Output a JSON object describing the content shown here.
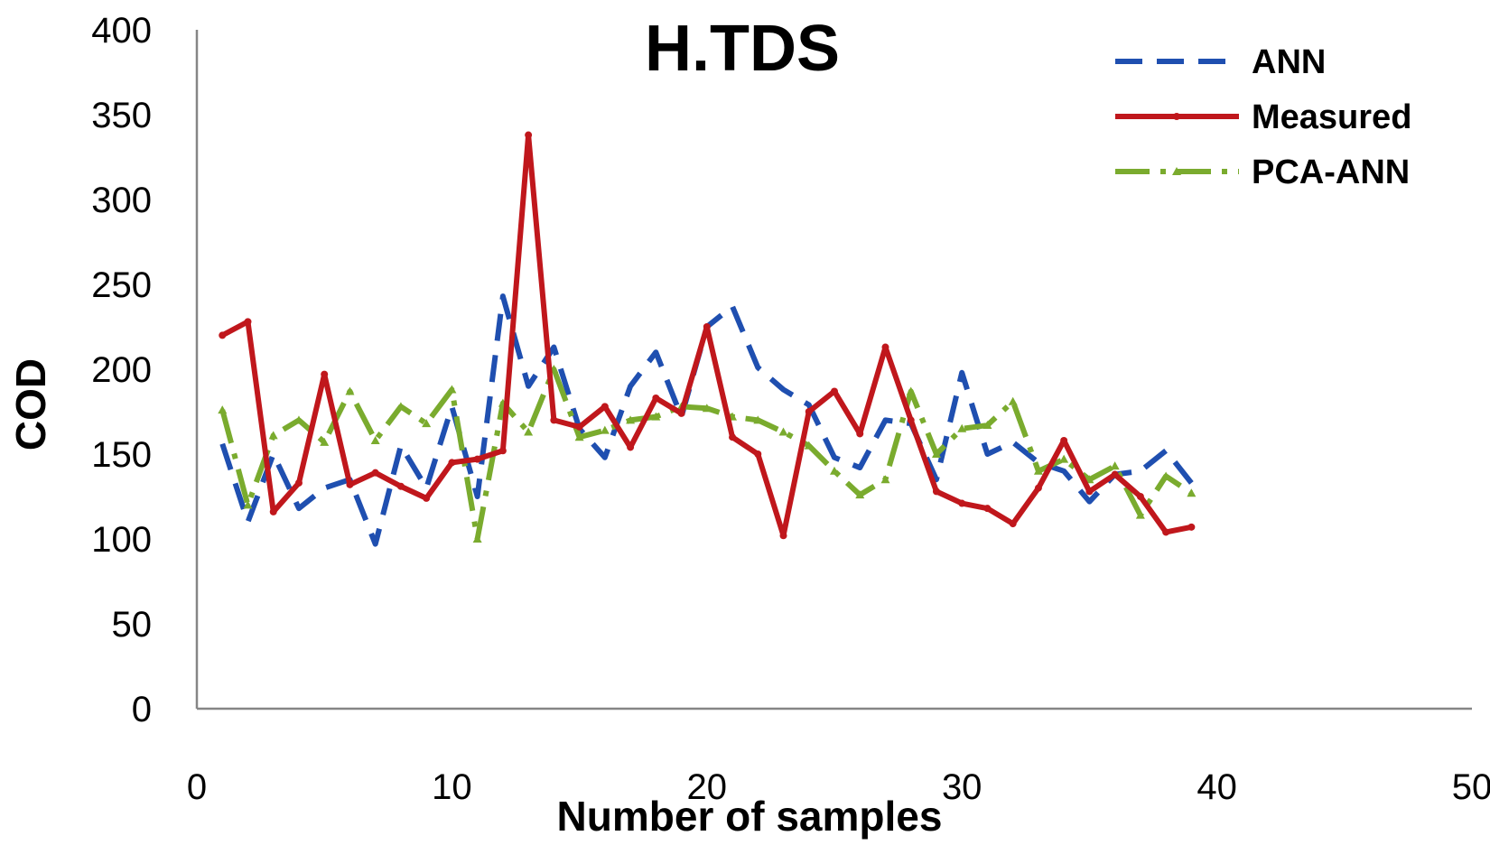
{
  "chart_data": {
    "type": "line",
    "title": "H.TDS",
    "xlabel": "Number of samples",
    "ylabel": "COD",
    "xlim": [
      0,
      50
    ],
    "ylim": [
      0,
      400
    ],
    "x_ticks": [
      0,
      10,
      20,
      30,
      40,
      50
    ],
    "y_ticks": [
      0,
      50,
      100,
      150,
      200,
      250,
      300,
      350,
      400
    ],
    "grid": false,
    "legend_position": "top-right",
    "x": [
      1,
      2,
      3,
      4,
      5,
      6,
      7,
      8,
      9,
      10,
      11,
      12,
      13,
      14,
      15,
      16,
      17,
      18,
      19,
      20,
      21,
      22,
      23,
      24,
      25,
      26,
      27,
      28,
      29,
      30,
      31,
      32,
      33,
      34,
      35,
      36,
      37,
      38,
      39
    ],
    "series": [
      {
        "name": "ANN",
        "color": "#1f4fb0",
        "style": "dashed",
        "values": [
          156,
          110,
          150,
          118,
          130,
          135,
          97,
          155,
          130,
          178,
          125,
          243,
          190,
          213,
          165,
          148,
          190,
          210,
          172,
          225,
          237,
          201,
          188,
          179,
          148,
          142,
          170,
          168,
          135,
          198,
          150,
          157,
          145,
          140,
          122,
          138,
          140,
          152,
          133
        ]
      },
      {
        "name": "Measured",
        "color": "#c0171c",
        "style": "solid",
        "marker": "circle",
        "values": [
          220,
          228,
          116,
          133,
          197,
          132,
          139,
          131,
          124,
          145,
          147,
          152,
          338,
          170,
          166,
          178,
          154,
          183,
          174,
          225,
          160,
          150,
          102,
          175,
          187,
          162,
          213,
          170,
          128,
          121,
          118,
          109,
          130,
          158,
          128,
          138,
          125,
          104,
          107
        ]
      },
      {
        "name": "PCA-ANN",
        "color": "#7aab2e",
        "style": "dashdot",
        "marker": "triangle",
        "values": [
          176,
          120,
          161,
          170,
          157,
          187,
          158,
          178,
          168,
          188,
          100,
          180,
          163,
          200,
          160,
          164,
          170,
          172,
          178,
          177,
          172,
          170,
          163,
          155,
          140,
          126,
          135,
          187,
          150,
          165,
          167,
          181,
          140,
          147,
          135,
          143,
          114,
          137,
          127
        ]
      }
    ]
  }
}
